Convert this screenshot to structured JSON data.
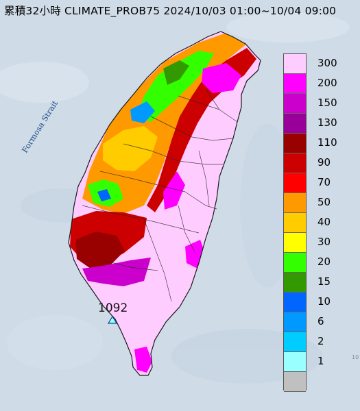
{
  "title": "累積32小時 CLIMATE_PROB75 2024/10/03 01:00~10/04 09:00",
  "strait_label": "Formosa Strait",
  "station": {
    "value": "1092",
    "marker": "triangle-station-icon"
  },
  "edge_fragment": "10",
  "colors": {
    "sea": "#cfdbe7",
    "coast_outline": "#1a1a1a",
    "county_lines": "#2a2a2a"
  },
  "legend": [
    {
      "label": "300",
      "color": "#ffccff"
    },
    {
      "label": "200",
      "color": "#ff00ff"
    },
    {
      "label": "150",
      "color": "#cc00cc"
    },
    {
      "label": "130",
      "color": "#990099"
    },
    {
      "label": "110",
      "color": "#990000"
    },
    {
      "label": "90",
      "color": "#cc0000"
    },
    {
      "label": "70",
      "color": "#ff0000"
    },
    {
      "label": "50",
      "color": "#ff9900"
    },
    {
      "label": "40",
      "color": "#ffcc00"
    },
    {
      "label": "30",
      "color": "#ffff00"
    },
    {
      "label": "20",
      "color": "#33ff00"
    },
    {
      "label": "15",
      "color": "#339900"
    },
    {
      "label": "10",
      "color": "#0066ff"
    },
    {
      "label": "6",
      "color": "#0099ff"
    },
    {
      "label": "2",
      "color": "#00ccff"
    },
    {
      "label": "1",
      "color": "#99ffff"
    },
    {
      "label": "",
      "color": "#c0c0c0"
    }
  ]
}
